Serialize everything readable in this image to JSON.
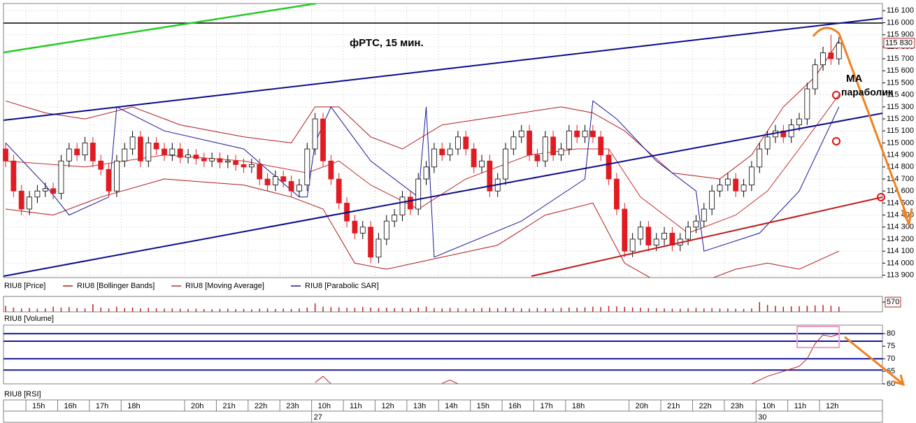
{
  "chart_data": [
    {
      "type": "candlestick",
      "name": "RIU8 [Price]",
      "title": "фРТС, 15 мин.",
      "annotations": [
        "МА",
        "параболик"
      ],
      "categories": [
        null,
        null,
        null,
        "15h",
        null,
        null,
        null,
        "16h",
        null,
        null,
        null,
        "17h",
        null,
        null,
        null,
        "18h",
        null,
        null,
        null,
        null,
        null,
        null,
        null,
        "20h",
        null,
        null,
        null,
        "21h",
        null,
        null,
        null,
        "22h",
        null,
        null,
        null,
        "23h",
        null,
        null,
        null,
        "10h",
        null,
        null,
        null,
        "11h",
        null,
        null,
        null,
        "12h",
        null,
        null,
        null,
        "13h",
        null,
        null,
        null,
        "14h",
        null,
        null,
        null,
        "15h",
        null,
        null,
        null,
        "16h",
        null,
        null,
        null,
        "17h",
        null,
        null,
        null,
        "18h",
        null,
        null,
        null,
        null,
        null,
        null,
        null,
        "20h",
        null,
        null,
        null,
        "21h",
        null,
        null,
        null,
        "22h",
        null,
        null,
        null,
        "23h",
        null,
        null,
        null,
        "10h",
        null,
        null,
        null,
        "11h",
        null,
        null,
        null,
        "12h",
        null,
        null
      ],
      "dates": [
        null,
        null,
        null,
        null,
        null,
        null,
        null,
        null,
        null,
        null,
        null,
        null,
        null,
        null,
        null,
        null,
        null,
        null,
        null,
        null,
        null,
        null,
        null,
        null,
        null,
        null,
        null,
        null,
        null,
        null,
        null,
        null,
        null,
        null,
        null,
        null,
        null,
        null,
        null,
        "27",
        null,
        null,
        null,
        null,
        null,
        null,
        null,
        null,
        null,
        null,
        null,
        null,
        null,
        null,
        null,
        null,
        null,
        null,
        null,
        null,
        null,
        null,
        null,
        null,
        null,
        null,
        null,
        null,
        null,
        null,
        null,
        null,
        null,
        null,
        null,
        null,
        null,
        null,
        null,
        null,
        null,
        null,
        null,
        null,
        null,
        null,
        null,
        null,
        null,
        null,
        null,
        null,
        null,
        null,
        null,
        "30",
        null,
        null,
        null,
        null,
        null,
        null,
        null,
        null,
        null,
        null
      ],
      "open": [
        114950,
        114850,
        114600,
        114450,
        114550,
        114600,
        114620,
        114580,
        114850,
        114950,
        114900,
        115000,
        114850,
        114780,
        114600,
        114850,
        114950,
        115050,
        114850,
        115000,
        114950,
        114900,
        114950,
        114880,
        114900,
        114870,
        114850,
        114870,
        114840,
        114850,
        114820,
        114800,
        114820,
        114700,
        114650,
        114720,
        114680,
        114600,
        114650,
        114950,
        115200,
        114850,
        114700,
        114500,
        114350,
        114250,
        114300,
        114050,
        114200,
        114350,
        114400,
        114550,
        114450,
        114700,
        114800,
        114950,
        114900,
        114950,
        115050,
        114950,
        114800,
        114850,
        114600,
        114700,
        114950,
        115050,
        115100,
        114900,
        114850,
        115050,
        114900,
        114950,
        115100,
        115050,
        115100,
        115050,
        114900,
        114700,
        114450,
        114100,
        114200,
        114300,
        114150,
        114200,
        114250,
        114150,
        114200,
        114300,
        114350,
        114450,
        114600,
        114650,
        114700,
        114600,
        114650,
        114800,
        114950,
        115050,
        115100,
        115050,
        115150,
        115200,
        115450,
        115650,
        115750,
        115700
      ],
      "high": [
        115000,
        114900,
        114650,
        114600,
        114650,
        114670,
        114670,
        114900,
        115000,
        115000,
        115050,
        115050,
        114900,
        114830,
        114900,
        115000,
        115100,
        115100,
        115050,
        115050,
        115000,
        115000,
        115000,
        114950,
        114950,
        114920,
        114920,
        114920,
        114900,
        114900,
        114870,
        114870,
        114870,
        114750,
        114770,
        114770,
        114730,
        114700,
        115000,
        115250,
        115250,
        114900,
        114750,
        114550,
        114400,
        114350,
        114350,
        114250,
        114400,
        114450,
        114600,
        114600,
        114750,
        114850,
        115000,
        115000,
        115000,
        115100,
        115100,
        115000,
        114900,
        114900,
        114750,
        115000,
        115100,
        115150,
        115150,
        114950,
        115100,
        115100,
        115000,
        115150,
        115150,
        115150,
        115150,
        115100,
        114950,
        114750,
        114500,
        114250,
        114350,
        114350,
        114250,
        114300,
        114300,
        114250,
        114350,
        114400,
        114500,
        114650,
        114700,
        114750,
        114750,
        114700,
        114850,
        115000,
        115100,
        115150,
        115150,
        115200,
        115250,
        115500,
        115700,
        115800,
        115900,
        115880
      ],
      "low": [
        114800,
        114550,
        114400,
        114400,
        114500,
        114550,
        114530,
        114530,
        114800,
        114850,
        114850,
        114800,
        114730,
        114550,
        114550,
        114800,
        114900,
        114800,
        114800,
        114900,
        114850,
        114850,
        114830,
        114830,
        114820,
        114800,
        114800,
        114790,
        114790,
        114770,
        114750,
        114750,
        114650,
        114600,
        114600,
        114630,
        114550,
        114550,
        114600,
        114900,
        114800,
        114650,
        114450,
        114300,
        114200,
        114200,
        114000,
        114000,
        114150,
        114300,
        114350,
        114400,
        114400,
        114650,
        114750,
        114850,
        114850,
        114900,
        114900,
        114750,
        114750,
        114550,
        114550,
        114650,
        114900,
        115000,
        114850,
        114800,
        114800,
        114850,
        114850,
        114900,
        115000,
        115000,
        115000,
        114850,
        114650,
        114400,
        114050,
        114050,
        114150,
        114100,
        114100,
        114150,
        114100,
        114100,
        114150,
        114250,
        114300,
        114400,
        114550,
        114600,
        114550,
        114550,
        114600,
        114750,
        114900,
        115000,
        115000,
        115000,
        115100,
        115150,
        115400,
        115600,
        115650,
        115650
      ],
      "close": [
        114850,
        114600,
        114450,
        114550,
        114600,
        114620,
        114580,
        114850,
        114950,
        114900,
        115000,
        114850,
        114780,
        114600,
        114850,
        114950,
        115050,
        114850,
        115000,
        114950,
        114900,
        114950,
        114880,
        114900,
        114870,
        114850,
        114870,
        114840,
        114850,
        114820,
        114800,
        114820,
        114700,
        114650,
        114720,
        114680,
        114600,
        114650,
        114950,
        115200,
        114850,
        114700,
        114500,
        114350,
        114250,
        114300,
        114050,
        114200,
        114350,
        114400,
        114550,
        114450,
        114700,
        114800,
        114950,
        114900,
        114950,
        115050,
        114950,
        114800,
        114850,
        114600,
        114700,
        114950,
        115050,
        115100,
        114900,
        114850,
        115050,
        114900,
        114950,
        115100,
        115050,
        115100,
        115050,
        114900,
        114700,
        114450,
        114100,
        114200,
        114300,
        114150,
        114200,
        114250,
        114150,
        114200,
        114300,
        114350,
        114450,
        114600,
        114650,
        114700,
        114600,
        114650,
        114800,
        114950,
        115050,
        115100,
        115050,
        115150,
        115200,
        115450,
        115650,
        115750,
        115700,
        115830
      ],
      "last_label": "115 830",
      "up_color": "#ffffff",
      "down_color": "#e01b22",
      "ylim": [
        113880,
        116160
      ],
      "yticks": [
        {
          "value": 113900,
          "label": "113 900"
        },
        {
          "value": 114000,
          "label": "114 000"
        },
        {
          "value": 114100,
          "label": "114 100"
        },
        {
          "value": 114200,
          "label": "114 200"
        },
        {
          "value": 114300,
          "label": "114 300"
        },
        {
          "value": 114400,
          "label": "114 400"
        },
        {
          "value": 114500,
          "label": "114 500"
        },
        {
          "value": 114600,
          "label": "114 600"
        },
        {
          "value": 114700,
          "label": "114 700"
        },
        {
          "value": 114800,
          "label": "114 800"
        },
        {
          "value": 114900,
          "label": "114 900"
        },
        {
          "value": 115000,
          "label": "115 000"
        },
        {
          "value": 115100,
          "label": "115 100"
        },
        {
          "value": 115200,
          "label": "115 200"
        },
        {
          "value": 115300,
          "label": "115 300"
        },
        {
          "value": 115400,
          "label": "115 400"
        },
        {
          "value": 115500,
          "label": "115 500"
        },
        {
          "value": 115600,
          "label": "115 600"
        },
        {
          "value": 115700,
          "label": "115 700"
        },
        {
          "value": 115800,
          "label": "115 800"
        },
        {
          "value": 115900,
          "label": "115 900"
        },
        {
          "value": 116000,
          "label": "116 000"
        },
        {
          "value": 116100,
          "label": "116 100"
        }
      ],
      "grid": true,
      "overlays": [
        {
          "name": "RIU8 [Bollinger Bands]",
          "color": "#b01a1a",
          "lines": [
            {
              "x": [
                0,
                5,
                10,
                16,
                22,
                30,
                36,
                39,
                42,
                46,
                50,
                55,
                60,
                65,
                70,
                74,
                78,
                84,
                90,
                94,
                98,
                102,
                105
              ],
              "values": [
                115350,
                115250,
                115200,
                115300,
                115150,
                115050,
                115000,
                115300,
                115300,
                115050,
                114950,
                115150,
                115200,
                115250,
                115300,
                115250,
                115100,
                114750,
                114700,
                114900,
                115300,
                115550,
                115850
              ]
            },
            {
              "x": [
                0,
                6,
                12,
                20,
                30,
                36,
                40,
                44,
                48,
                55,
                62,
                68,
                74,
                78,
                82,
                86,
                92,
                96,
                100,
                105
              ],
              "values": [
                114450,
                114400,
                114550,
                114700,
                114650,
                114550,
                114450,
                114000,
                113950,
                114050,
                114150,
                114400,
                114500,
                114000,
                113850,
                113800,
                113950,
                114000,
                113950,
                114100
              ]
            }
          ]
        },
        {
          "name": "RIU8 [Moving Average]",
          "color": "#c03030",
          "lines": [
            {
              "x": [
                0,
                10,
                20,
                30,
                38,
                42,
                46,
                52,
                58,
                66,
                72,
                76,
                80,
                86,
                92,
                96,
                100,
                105
              ],
              "values": [
                114850,
                114800,
                114900,
                114850,
                114750,
                114850,
                114650,
                114450,
                114700,
                114900,
                114950,
                114950,
                114550,
                114250,
                114400,
                114600,
                114950,
                115400
              ]
            }
          ]
        },
        {
          "name": "RIU8 [Parabolic SAR]",
          "color": "#1a1a9c",
          "lines": [
            {
              "x": [
                0,
                5,
                8,
                13,
                14,
                20,
                30,
                37,
                38,
                39,
                41,
                46,
                52,
                53,
                54,
                65,
                73,
                74,
                77,
                82,
                87,
                88,
                95,
                100,
                105
              ],
              "values": [
                115000,
                114650,
                114400,
                114550,
                115300,
                115100,
                114950,
                114550,
                114550,
                115000,
                115300,
                114850,
                114550,
                115300,
                114050,
                114350,
                114700,
                115350,
                115200,
                114850,
                114600,
                114100,
                114250,
                114600,
                115300
              ]
            }
          ]
        }
      ]
    },
    {
      "type": "bar",
      "name": "RIU8 [Volume]",
      "color": "#c02020",
      "values": [
        350,
        250,
        200,
        220,
        180,
        200,
        300,
        250,
        280,
        220,
        200,
        450,
        250,
        200,
        300,
        220,
        250,
        200,
        230,
        210,
        190,
        200,
        180,
        170,
        190,
        160,
        150,
        170,
        180,
        160,
        170,
        150,
        180,
        200,
        170,
        190,
        160,
        200,
        250,
        500,
        300,
        280,
        260,
        240,
        230,
        280,
        250,
        220,
        240,
        210,
        230,
        200,
        250,
        300,
        220,
        200,
        230,
        210,
        190,
        200,
        220,
        240,
        210,
        250,
        230,
        200,
        190,
        220,
        210,
        200,
        230,
        250,
        240,
        260,
        300,
        280,
        350,
        320,
        290,
        260,
        240,
        220,
        210,
        200,
        190,
        180,
        210,
        230,
        200,
        220,
        190,
        200,
        180,
        170,
        200,
        570,
        400,
        350,
        300,
        320,
        330,
        350,
        380,
        400,
        360,
        300
      ],
      "ylim": [
        0,
        900
      ],
      "yticks": [
        570
      ]
    },
    {
      "type": "line",
      "name": "RIU8 [RSI]",
      "color": "#c02020",
      "lines": [
        {
          "x": [
            39,
            40,
            41
          ],
          "values": [
            60.5,
            63,
            60
          ]
        },
        {
          "x": [
            55,
            56,
            57
          ],
          "values": [
            60.2,
            61.5,
            60
          ]
        },
        {
          "x": [
            94,
            96,
            98,
            100,
            101,
            102,
            103,
            104,
            105
          ],
          "values": [
            60,
            63,
            65,
            67,
            70,
            76,
            79.5,
            78.8,
            79.8
          ]
        }
      ],
      "levels": [
        80,
        77,
        70,
        65.5
      ],
      "level_color": "#1a1a9c",
      "ylim": [
        60,
        83.4
      ],
      "yticks": [
        60,
        65,
        70,
        75,
        80
      ]
    }
  ]
}
